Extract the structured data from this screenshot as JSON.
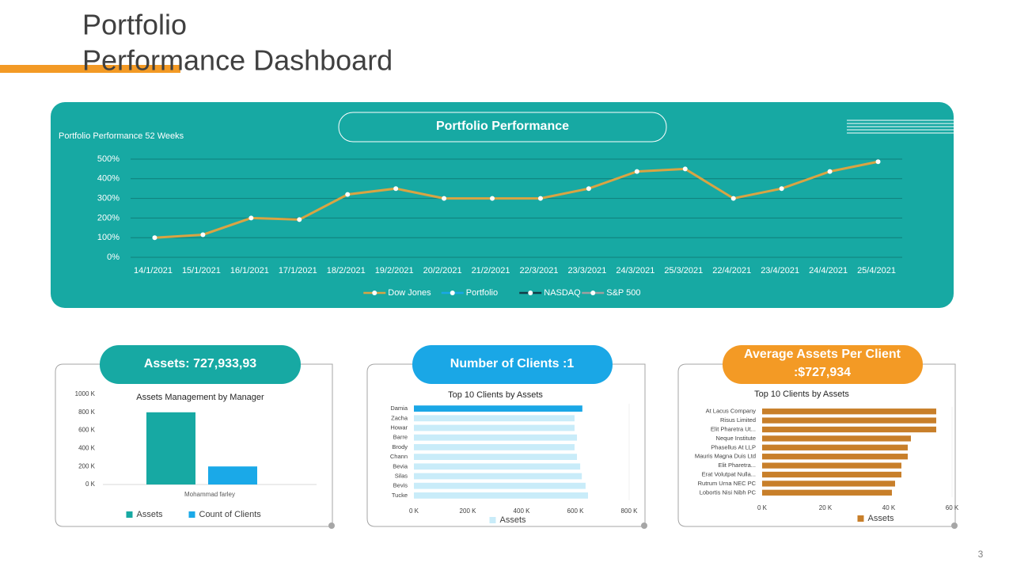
{
  "title_lines": [
    "Portfolio",
    "Performance Dashboard"
  ],
  "page_number": 3,
  "panel_headers": {
    "performance": "Portfolio Performance",
    "assets": "Assets: 727,933,93",
    "clients": "Number of Clients :1",
    "average": [
      "Average Assets Per Client",
      ":$727,934"
    ]
  },
  "chart_data": [
    {
      "type": "line",
      "title": "Portfolio Performance 52 Weeks",
      "categories": [
        "14/1/2021",
        "15/1/2021",
        "16/1/2021",
        "17/1/2021",
        "18/2/2021",
        "19/2/2021",
        "20/2/2021",
        "21/2/2021",
        "22/3/2021",
        "23/3/2021",
        "24/3/2021",
        "25/3/2021",
        "22/4/2021",
        "23/4/2021",
        "24/4/2021",
        "25/4/2021"
      ],
      "series": [
        {
          "name": "Dow Jones",
          "color": "#d9a443",
          "values": [
            100,
            115,
            200,
            192,
            320,
            350,
            300,
            300,
            300,
            350,
            437,
            450,
            300,
            350,
            437,
            487
          ]
        },
        {
          "name": "Portfolio",
          "color": "#1aa7e6",
          "values": [
            null,
            null,
            null,
            null,
            null,
            null,
            null,
            null,
            null,
            null,
            null,
            null,
            null,
            null,
            null,
            null
          ]
        },
        {
          "name": "NASDAQ",
          "color": "#123c48",
          "values": [
            null,
            null,
            null,
            null,
            null,
            null,
            null,
            null,
            null,
            null,
            null,
            null,
            null,
            null,
            null,
            null
          ]
        },
        {
          "name": "S&P 500",
          "color": "#a0a0a0",
          "values": [
            null,
            null,
            null,
            null,
            null,
            null,
            null,
            null,
            null,
            null,
            null,
            null,
            null,
            null,
            null,
            null
          ]
        }
      ],
      "ylim": [
        0,
        500
      ],
      "yticks": [
        {
          "value": 0,
          "label": "0%"
        },
        {
          "value": 100,
          "label": "100%"
        },
        {
          "value": 200,
          "label": "200%"
        },
        {
          "value": 300,
          "label": "300%"
        },
        {
          "value": 400,
          "label": "400%"
        },
        {
          "value": 500,
          "label": "500%"
        }
      ],
      "grid": true,
      "legend": "bottom"
    },
    {
      "type": "bar",
      "title": "Assets Management  by Manager",
      "categories": [
        "Mohammad farley"
      ],
      "series": [
        {
          "name": "Assets",
          "color": "#17a9a3",
          "values": [
            800000
          ]
        },
        {
          "name": "Count of Clients",
          "color": "#1aa9e8",
          "values": [
            200000
          ]
        }
      ],
      "ylim": [
        0,
        1000000
      ],
      "yticks": [
        {
          "value": 0,
          "label": "0 K"
        },
        {
          "value": 200000,
          "label": "200 K"
        },
        {
          "value": 400000,
          "label": "400 K"
        },
        {
          "value": 600000,
          "label": "600 K"
        },
        {
          "value": 800000,
          "label": "800 K"
        },
        {
          "value": 1000000,
          "label": "1000 K"
        }
      ],
      "grid": false,
      "legend": "bottom"
    },
    {
      "type": "hbar",
      "title": "Top 10 Clients by Assets",
      "categories": [
        "Damia",
        "Zacha",
        "Howar",
        "Barre",
        "Brody",
        "Chann",
        "Bevia",
        "Silas",
        "Bevis",
        "Tucke"
      ],
      "series": [
        {
          "name": "Assets",
          "color": "#c9ecf9",
          "values": [
            626000,
            597000,
            597000,
            606000,
            597000,
            606000,
            618000,
            624000,
            638000,
            647000
          ]
        }
      ],
      "highlight_color": "#1aa7e6",
      "xlim": [
        0,
        800000
      ],
      "xticks": [
        {
          "value": 0,
          "label": "0 K"
        },
        {
          "value": 200000,
          "label": "200 K"
        },
        {
          "value": 400000,
          "label": "400 K"
        },
        {
          "value": 600000,
          "label": "600 K"
        },
        {
          "value": 800000,
          "label": "800 K"
        }
      ],
      "legend": "bottom"
    },
    {
      "type": "hbar",
      "title": "Top 10 Clients by Assets",
      "categories": [
        "At Lacus Company",
        "Risus Limited",
        "Elit Pharetra Ut...",
        "Neque Institute",
        "Phasellus At LLP",
        "Mauris Magna Duis Ltd",
        "Elit Pharetra...",
        "Erat Volutpat Nulla...",
        "Rutrum Urna NEC PC",
        "Lobortis Nisi Nibh PC"
      ],
      "series": [
        {
          "name": "Assets",
          "color": "#c87f2a",
          "values": [
            55000,
            55000,
            55000,
            47000,
            46000,
            46000,
            44000,
            44000,
            42000,
            41000
          ]
        }
      ],
      "xlim": [
        0,
        60000
      ],
      "xticks": [
        {
          "value": 0,
          "label": "0 K"
        },
        {
          "value": 20000,
          "label": "20 K"
        },
        {
          "value": 40000,
          "label": "40 K"
        },
        {
          "value": 60000,
          "label": "60 K"
        }
      ],
      "legend": "bottom"
    }
  ]
}
